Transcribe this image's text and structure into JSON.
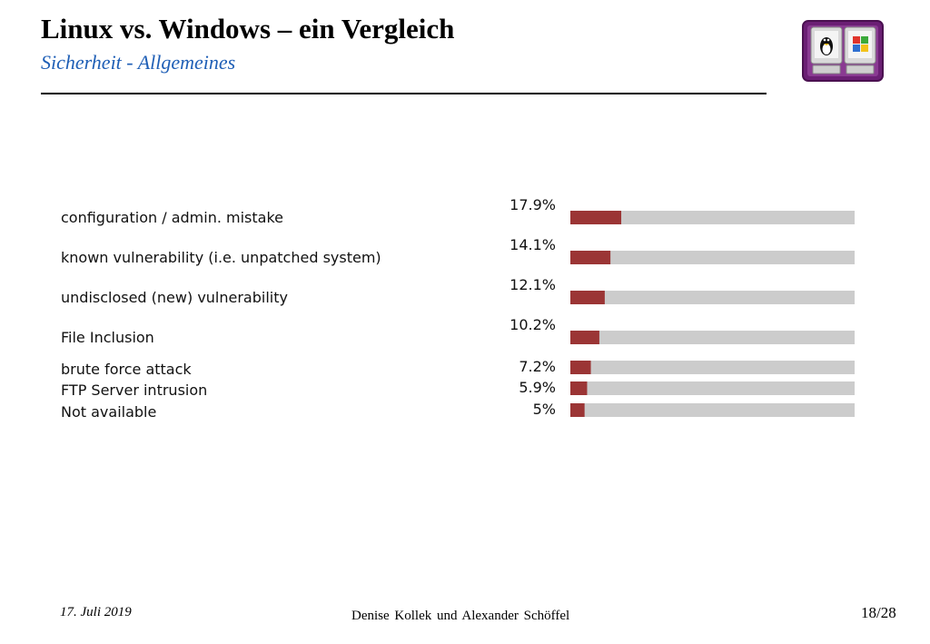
{
  "slide": {
    "title": "Linux vs. Windows – ein Vergleich",
    "subtitle": "Sicherheit - Allgemeines",
    "subtitle_color": "#1f5fb6"
  },
  "logo": {
    "icon_left": "linux-penguin-computer-icon",
    "icon_right": "windows-logo-computer-icon",
    "frame_color": "#7a2a82"
  },
  "chart_data": {
    "type": "bar",
    "orientation": "horizontal",
    "title": "",
    "categories": [
      "configuration / admin. mistake",
      "known vulnerability (i.e. unpatched system)",
      "undisclosed (new) vulnerability",
      "File Inclusion",
      "brute force attack",
      "FTP Server intrusion",
      "Not available"
    ],
    "values": [
      17.9,
      14.1,
      12.1,
      10.2,
      7.2,
      5.9,
      5
    ],
    "value_labels": [
      "17.9%",
      "14.1%",
      "12.1%",
      "10.2%",
      "7.2%",
      "5.9%",
      "5%"
    ],
    "xlim": [
      0,
      100
    ],
    "unit": "%",
    "bar_color": "#9b3535",
    "track_color": "#cccccc",
    "grid": false,
    "legend": "none"
  },
  "footer": {
    "date": "17. Juli 2019",
    "authors": "Denise  Kollek  und  Alexander Schöffel",
    "page": "18/28"
  }
}
